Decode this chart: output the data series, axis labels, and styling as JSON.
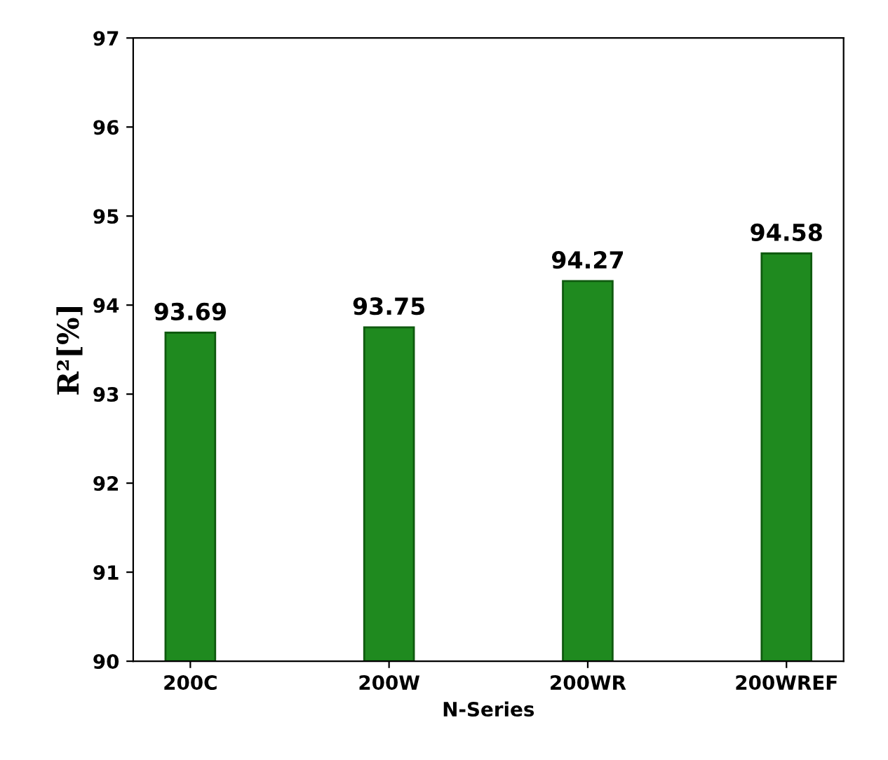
{
  "chart_data": {
    "type": "bar",
    "xlabel": "N-Series",
    "ylabel": "R²[%]",
    "categories": [
      "200C",
      "200W",
      "200WR",
      "200WREF"
    ],
    "values": [
      93.69,
      93.75,
      94.27,
      94.58
    ],
    "color": "#1f8a1f",
    "ylim": [
      90,
      97
    ],
    "yticks": [
      90,
      91,
      92,
      93,
      94,
      95,
      96,
      97
    ],
    "data_labels": true
  }
}
